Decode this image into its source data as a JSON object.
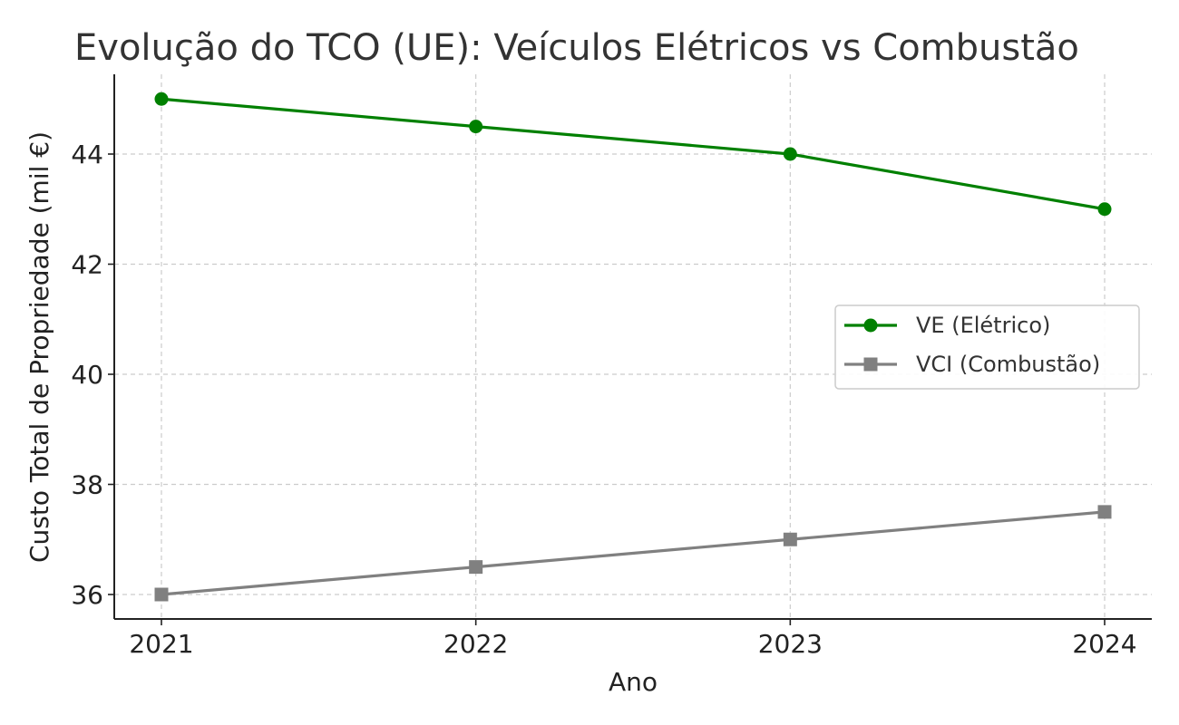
{
  "chart_data": {
    "type": "line",
    "title": "Evolução do TCO (UE): Veículos Elétricos vs Combustão",
    "xlabel": "Ano",
    "ylabel": "Custo Total de Propriedade (mil €)",
    "x": [
      "2021",
      "2022",
      "2023",
      "2024"
    ],
    "yticks": [
      "36",
      "38",
      "40",
      "42",
      "44"
    ],
    "ylim": [
      35.55,
      45.45
    ],
    "grid": true,
    "legend_position": "center-right",
    "series": [
      {
        "name": "VE (Elétrico)",
        "values": [
          45.0,
          44.5,
          44.0,
          43.0
        ],
        "color": "#008000",
        "marker": "circle"
      },
      {
        "name": "VCI (Combustão)",
        "values": [
          36.0,
          36.5,
          37.0,
          37.5
        ],
        "color": "#808080",
        "marker": "square"
      }
    ]
  }
}
